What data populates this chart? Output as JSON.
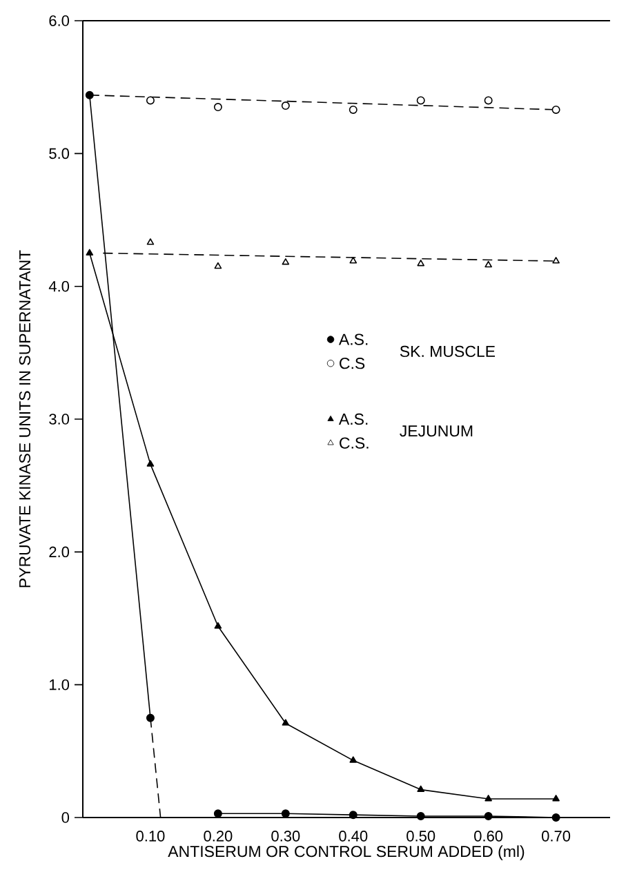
{
  "chart_data": {
    "type": "line",
    "xlabel": "ANTISERUM OR CONTROL SERUM ADDED (ml)",
    "ylabel": "PYRUVATE KINASE UNITS IN SUPERNATANT",
    "xlim": [
      0,
      0.78
    ],
    "ylim": [
      0,
      6
    ],
    "xticks": [
      {
        "value": 0.1,
        "label": "0.10"
      },
      {
        "value": 0.2,
        "label": "0.20"
      },
      {
        "value": 0.3,
        "label": "0.30"
      },
      {
        "value": 0.4,
        "label": "0.40"
      },
      {
        "value": 0.5,
        "label": "0.50"
      },
      {
        "value": 0.6,
        "label": "0.60"
      },
      {
        "value": 0.7,
        "label": "0.70"
      }
    ],
    "yticks": [
      {
        "value": 0,
        "label": "0"
      },
      {
        "value": 1,
        "label": "1.0"
      },
      {
        "value": 2,
        "label": "2.0"
      },
      {
        "value": 3,
        "label": "3.0"
      },
      {
        "value": 4,
        "label": "4.0"
      },
      {
        "value": 5,
        "label": "5.0"
      },
      {
        "value": 6,
        "label": "6.0"
      }
    ],
    "legend": "center",
    "annotations": [
      "SK. MUSCLE",
      "JEJUNUM"
    ],
    "line_style": "solid",
    "series": [
      {
        "name": "A.S.",
        "marker": "circle",
        "color": "#000000",
        "x": [
          0.01,
          0.1,
          0.15,
          0.2,
          0.3,
          0.4,
          0.5,
          0.6,
          0.7
        ],
        "values": [
          5.44,
          0.75,
          null,
          0.03,
          0.03,
          0.02,
          0.01,
          0.01,
          0.0
        ]
      },
      {
        "name": "C.S",
        "type": "scatter",
        "marker": "circle",
        "color": "#000000",
        "x": [
          0.1,
          0.2,
          0.3,
          0.4,
          0.5,
          0.6,
          0.7
        ],
        "values": [
          5.4,
          5.35,
          5.36,
          5.33,
          5.4,
          5.4,
          5.33
        ]
      },
      {
        "name": "A.S.",
        "marker": "triangle",
        "color": "#000000",
        "x": [
          0.01,
          0.1,
          0.2,
          0.3,
          0.4,
          0.5,
          0.6,
          0.7
        ],
        "values": [
          4.25,
          2.66,
          1.44,
          0.71,
          0.43,
          0.21,
          0.14,
          0.14
        ]
      },
      {
        "name": "C.S.",
        "type": "scatter",
        "marker": "triangle",
        "color": "#000000",
        "x": [
          0.1,
          0.2,
          0.3,
          0.4,
          0.5,
          0.6,
          0.7
        ],
        "values": [
          4.33,
          4.15,
          4.18,
          4.19,
          4.17,
          4.16,
          4.19
        ]
      },
      {
        "marker": "none",
        "line_style": "dashed",
        "color": "#000000",
        "x": [
          0.01,
          0.7
        ],
        "values": [
          5.44,
          5.33
        ]
      },
      {
        "marker": "none",
        "line_style": "dashed",
        "color": "#000000",
        "x": [
          0.03,
          0.7
        ],
        "values": [
          4.25,
          4.19
        ]
      },
      {
        "marker": "none",
        "line_style": "dashed",
        "color": "#000000",
        "x": [
          0.1,
          0.115
        ],
        "values": [
          0.75,
          0
        ]
      }
    ]
  }
}
